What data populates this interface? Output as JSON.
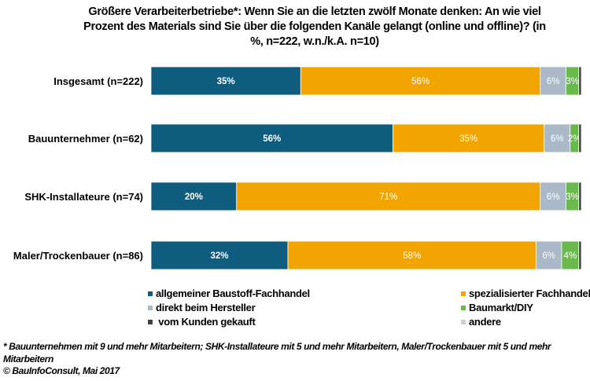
{
  "chart_data": {
    "type": "bar",
    "orientation": "horizontal",
    "stacked": true,
    "title": "Größere Verarbeiterbetriebe*: Wenn Sie an die letzten zwölf Monate denken: An wie viel Prozent des Materials sind Sie über die folgenden Kanäle gelangt (online und offline)? (in %, n=222, w.n./k.A. n=10)",
    "xlabel": "",
    "ylabel": "",
    "xlim": [
      0,
      100
    ],
    "grid": false,
    "legend_position": "bottom",
    "categories": [
      "Insgesamt (n=222)",
      "Bauunternehmer (n=62)",
      "SHK-Installateure (n=74)",
      "Maler/Trockenbauer (n=86)"
    ],
    "series": [
      {
        "name": "allgemeiner Baustoff-Fachhandel",
        "color": "#0e5c7e",
        "values": [
          35,
          56,
          20,
          32
        ],
        "labels": [
          "35%",
          "56%",
          "20%",
          "32%"
        ]
      },
      {
        "name": "spezialisierter Fachhandel",
        "color": "#f2a500",
        "values": [
          56,
          35,
          71,
          58
        ],
        "labels": [
          "56%",
          "35%",
          "71%",
          "58%"
        ]
      },
      {
        "name": "direkt beim Hersteller",
        "color": "#a9b9c8",
        "values": [
          6,
          6,
          6,
          6
        ],
        "labels": [
          "6%",
          "6%",
          "6%",
          "6%"
        ]
      },
      {
        "name": "Baumarkt/DIY",
        "color": "#6ab94d",
        "values": [
          3,
          2,
          3,
          4
        ],
        "labels": [
          "3%",
          "2%",
          "3%",
          "4%"
        ]
      },
      {
        "name": "vom Kunden gekauft",
        "color": "#404040",
        "values": [
          0.6,
          0.6,
          0.6,
          0.6
        ],
        "labels": [
          "",
          "",
          "",
          ""
        ]
      },
      {
        "name": "andere",
        "color": "#d0d0d0",
        "values": [
          0,
          0,
          0,
          0
        ],
        "labels": [
          "",
          "",
          "",
          ""
        ]
      }
    ],
    "footnote": "* Bauunternehmen mit 9 und mehr Mitarbeitern; SHK-Installateure mit 5 und mehr Mitarbeitern, Maler/Trockenbauer mit 5 und mehr Mitarbeitern",
    "source": "© BauInfoConsult, Mai 2017"
  },
  "legend_layout": [
    [
      "allgemeiner Baustoff-Fachhandel",
      "spezialisierter Fachhandel"
    ],
    [
      "direkt beim Hersteller",
      "Baumarkt/DIY"
    ],
    [
      " vom Kunden gekauft",
      "andere"
    ]
  ]
}
